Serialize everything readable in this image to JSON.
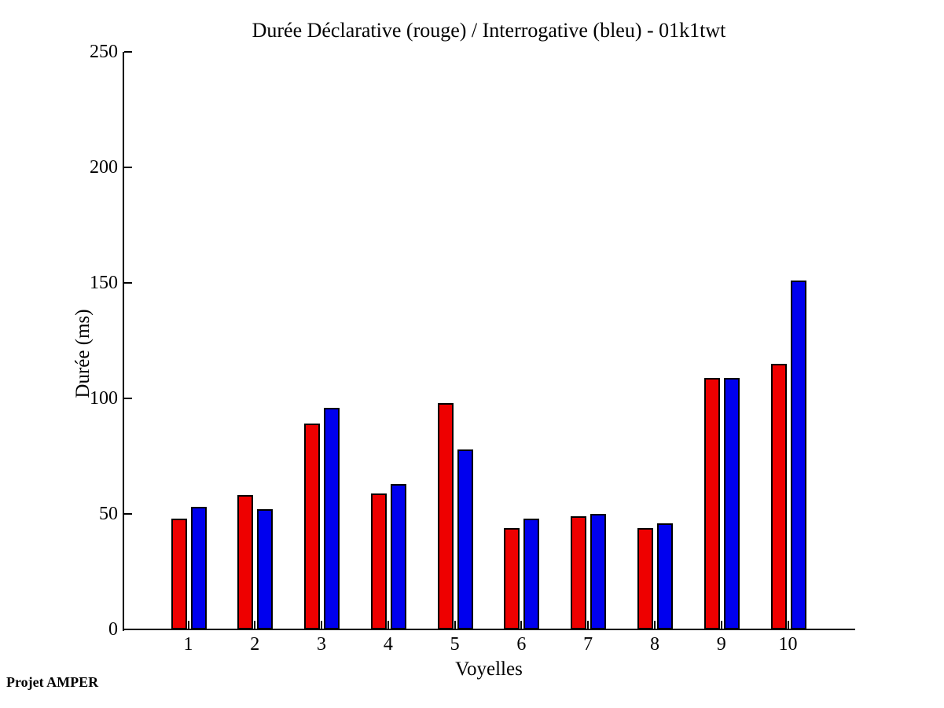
{
  "footnote": "Projet AMPER",
  "chart_data": {
    "type": "bar",
    "title": "Durée Déclarative (rouge) / Interrogative (bleu) - 01k1twt",
    "xlabel": "Voyelles",
    "ylabel": "Durée (ms)",
    "categories": [
      "1",
      "2",
      "3",
      "4",
      "5",
      "6",
      "7",
      "8",
      "9",
      "10"
    ],
    "series": [
      {
        "name": "Déclarative",
        "color": "#ee0000",
        "values": [
          48,
          58,
          89,
          59,
          98,
          44,
          49,
          44,
          109,
          115
        ]
      },
      {
        "name": "Interrogative",
        "color": "#0000ee",
        "values": [
          53,
          52,
          96,
          63,
          78,
          48,
          50,
          46,
          109,
          151
        ]
      }
    ],
    "ylim": [
      0,
      250
    ],
    "yticks": [
      0,
      50,
      100,
      150,
      200,
      250
    ],
    "grid": false,
    "legend_position": "none (encoded in title)"
  }
}
